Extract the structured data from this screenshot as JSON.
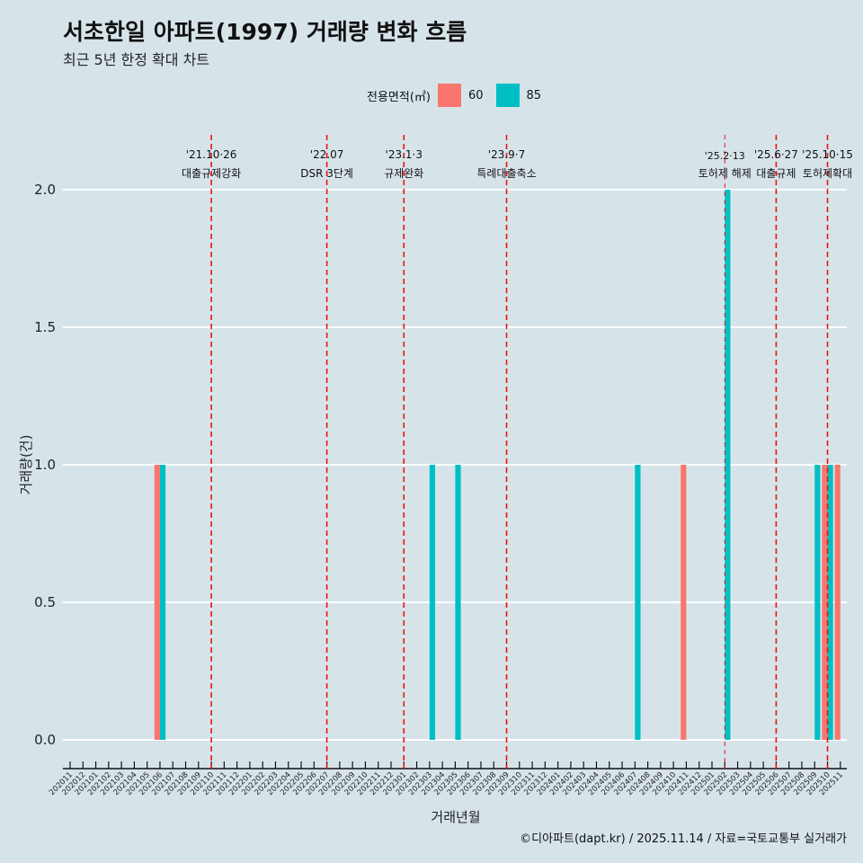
{
  "chart_data": {
    "type": "bar",
    "title": "서초한일 아파트(1997) 거래량 변화 흐름",
    "subtitle": "최근 5년 한정 확대 차트",
    "legend_title": "전용면적(㎡)",
    "xlabel": "거래년월",
    "ylabel": "거래량(건)",
    "ylim": [
      0,
      2
    ],
    "yticks": [
      "0.0",
      "0.5",
      "1.0",
      "1.5",
      "2.0"
    ],
    "caption": "©디아파트(dapt.kr) / 2025.11.14 / 자료=국토교통부 실거래가",
    "categories": [
      "202011",
      "202012",
      "202101",
      "202102",
      "202103",
      "202104",
      "202105",
      "202106",
      "202107",
      "202108",
      "202109",
      "202110",
      "202111",
      "202112",
      "202201",
      "202202",
      "202203",
      "202204",
      "202205",
      "202206",
      "202207",
      "202208",
      "202209",
      "202210",
      "202211",
      "202212",
      "202301",
      "202302",
      "202303",
      "202304",
      "202305",
      "202306",
      "202307",
      "202308",
      "202309",
      "202310",
      "202311",
      "202312",
      "202401",
      "202402",
      "202403",
      "202404",
      "202405",
      "202406",
      "202407",
      "202408",
      "202409",
      "202410",
      "202411",
      "202412",
      "202501",
      "202502",
      "202503",
      "202504",
      "202505",
      "202506",
      "202507",
      "202508",
      "202509",
      "202510",
      "202511"
    ],
    "series": [
      {
        "name": "60",
        "color": "#f8766d",
        "points": [
          [
            "202106",
            1
          ],
          [
            "202411",
            1
          ],
          [
            "202510",
            1
          ],
          [
            "202511",
            1
          ]
        ]
      },
      {
        "name": "85",
        "color": "#00bfc4",
        "points": [
          [
            "202106",
            1
          ],
          [
            "202303",
            1
          ],
          [
            "202305",
            1
          ],
          [
            "202407",
            1
          ],
          [
            "202502",
            2
          ],
          [
            "202509",
            1
          ],
          [
            "202510",
            1
          ]
        ]
      }
    ],
    "annotations": [
      {
        "at": "202110",
        "date": "'21.10·26",
        "label": "대출규제강화"
      },
      {
        "at": "202207",
        "date": "'22.07",
        "label": "DSR 3단계"
      },
      {
        "at": "202301",
        "date": "'23.1·3",
        "label": "규제완화"
      },
      {
        "at": "202309",
        "date": "'23.9·7",
        "label": "특례대출축소"
      },
      {
        "at": "202502",
        "date": "'25.2·13",
        "label": "토허제 해제",
        "thin": true
      },
      {
        "at": "202506",
        "date": "'25.6·27",
        "label": "대출규제"
      },
      {
        "at": "202510",
        "date": "'25.10·15",
        "label": "토허제확대"
      }
    ]
  }
}
